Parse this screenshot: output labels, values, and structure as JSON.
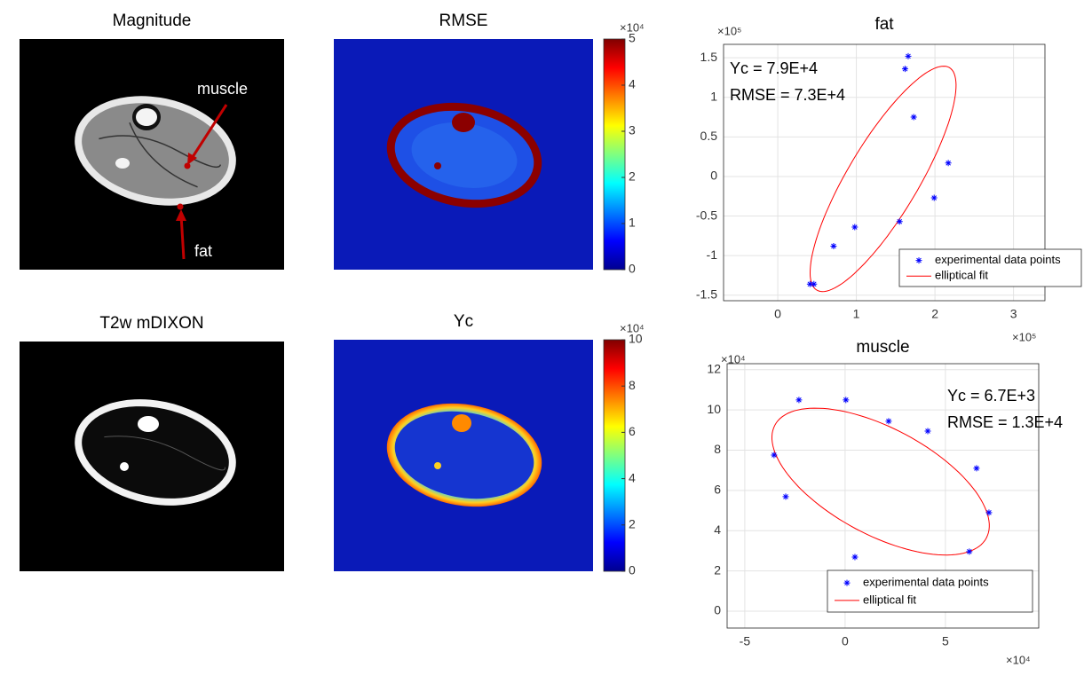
{
  "panels": [
    {
      "title": "Magnitude",
      "annotations": [
        "muscle",
        "fat"
      ]
    },
    {
      "title": "RMSE",
      "colorbar": {
        "lim": [
          0,
          5
        ],
        "ticks": [
          0,
          1,
          2,
          3,
          4,
          5
        ],
        "multiplier": "×10⁴"
      }
    },
    {
      "title": "T2w mDIXON"
    },
    {
      "title": "Yc",
      "colorbar": {
        "lim": [
          0,
          10
        ],
        "ticks": [
          0,
          2,
          4,
          6,
          8,
          10
        ],
        "multiplier": "×10⁴"
      }
    }
  ],
  "chart_data": [
    {
      "type": "scatter",
      "title": "fat",
      "xlim": [
        -0.69,
        3.4
      ],
      "ylim": [
        -1.57,
        1.67
      ],
      "xticks": [
        0,
        1,
        2,
        3
      ],
      "yticks": [
        -1.5,
        -1,
        -0.5,
        0,
        0.5,
        1,
        1.5
      ],
      "x_multiplier": "×10⁵",
      "y_multiplier": "×10⁵",
      "grid": true,
      "series": [
        {
          "name": "experimental data points",
          "color": "#0000ff",
          "x": [
            1.66,
            1.62,
            1.73,
            2.17,
            1.99,
            1.55,
            0.98,
            0.71,
            0.41,
            0.46
          ],
          "values": [
            1.52,
            1.36,
            0.75,
            0.17,
            -0.27,
            -0.57,
            -0.64,
            -0.88,
            -1.36,
            -1.36
          ]
        }
      ],
      "fit": {
        "name": "elliptical fit",
        "color": "#ff0000",
        "cx": 1.34,
        "cy": -0.03,
        "a": 1.64,
        "b": 0.45,
        "angle": 59
      },
      "annotations": [
        "Yc = 7.9E+4",
        "RMSE = 7.3E+4"
      ],
      "legend": "lower right"
    },
    {
      "type": "scatter",
      "title": "muscle",
      "xlim": [
        -5.88,
        9.65
      ],
      "ylim": [
        -0.84,
        12.3
      ],
      "xticks": [
        -5,
        0,
        5
      ],
      "yticks": [
        0,
        2,
        4,
        6,
        8,
        10,
        12
      ],
      "x_multiplier": "×10⁴",
      "y_multiplier": "×10⁴",
      "grid": true,
      "series": [
        {
          "name": "experimental data points",
          "color": "#0000ff",
          "x": [
            -2.3,
            0.04,
            2.17,
            4.12,
            6.55,
            7.17,
            6.19,
            0.49,
            -2.96,
            -3.54
          ],
          "values": [
            10.5,
            10.5,
            9.44,
            8.95,
            7.1,
            4.9,
            2.96,
            2.69,
            5.69,
            7.76
          ]
        }
      ],
      "fit": {
        "name": "elliptical fit",
        "color": "#ff0000",
        "cx": 1.77,
        "cy": 6.44,
        "a": 5.97,
        "b": 2.65,
        "angle": -28
      },
      "annotations": [
        "Yc = 6.7E+3",
        "RMSE = 1.3E+4"
      ],
      "legend": "lower right"
    }
  ]
}
